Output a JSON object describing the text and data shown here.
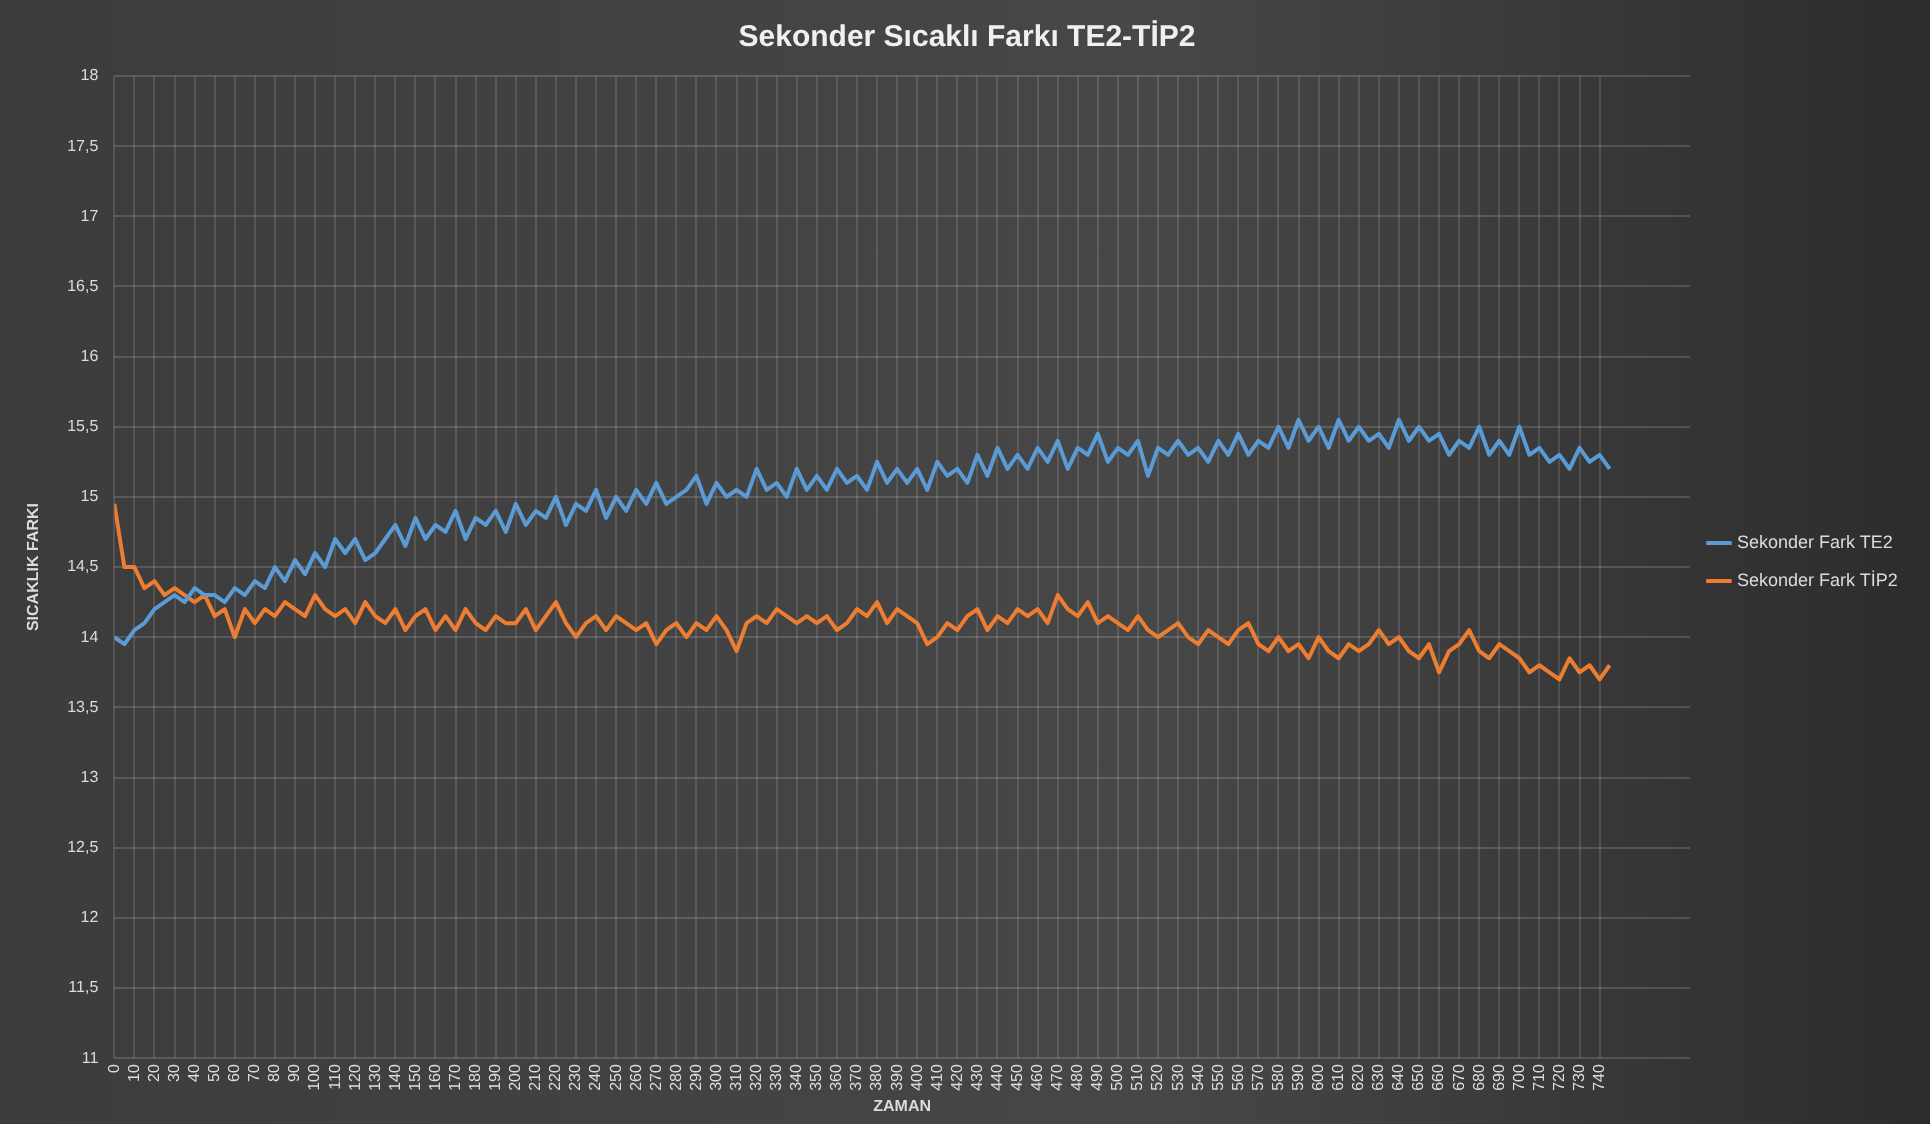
{
  "chart_data": {
    "type": "line",
    "title": "Sekonder Sıcaklı Farkı TE2-TİP2",
    "xlabel": "ZAMAN",
    "ylabel": "SICAKLIK FARKI",
    "x": [
      0,
      5,
      10,
      15,
      20,
      25,
      30,
      35,
      40,
      45,
      50,
      55,
      60,
      65,
      70,
      75,
      80,
      85,
      90,
      95,
      100,
      105,
      110,
      115,
      120,
      125,
      130,
      135,
      140,
      145,
      150,
      155,
      160,
      165,
      170,
      175,
      180,
      185,
      190,
      195,
      200,
      205,
      210,
      215,
      220,
      225,
      230,
      235,
      240,
      245,
      250,
      255,
      260,
      265,
      270,
      275,
      280,
      285,
      290,
      295,
      300,
      305,
      310,
      315,
      320,
      325,
      330,
      335,
      340,
      345,
      350,
      355,
      360,
      365,
      370,
      375,
      380,
      385,
      390,
      395,
      400,
      405,
      410,
      415,
      420,
      425,
      430,
      435,
      440,
      445,
      450,
      455,
      460,
      465,
      470,
      475,
      480,
      485,
      490,
      495,
      500,
      505,
      510,
      515,
      520,
      525,
      530,
      535,
      540,
      545,
      550,
      555,
      560,
      565,
      570,
      575,
      580,
      585,
      590,
      595,
      600,
      605,
      610,
      615,
      620,
      625,
      630,
      635,
      640,
      645,
      650,
      655,
      660,
      665,
      670,
      675,
      680,
      685,
      690,
      695,
      700,
      705,
      710,
      715,
      720,
      725,
      730,
      735,
      740,
      745
    ],
    "series": [
      {
        "name": "Sekonder Fark TE2",
        "color": "#5b9bd5",
        "values": [
          14.0,
          13.95,
          14.05,
          14.1,
          14.2,
          14.25,
          14.3,
          14.25,
          14.35,
          14.3,
          14.3,
          14.25,
          14.35,
          14.3,
          14.4,
          14.35,
          14.5,
          14.4,
          14.55,
          14.45,
          14.6,
          14.5,
          14.7,
          14.6,
          14.7,
          14.55,
          14.6,
          14.7,
          14.8,
          14.65,
          14.85,
          14.7,
          14.8,
          14.75,
          14.9,
          14.7,
          14.85,
          14.8,
          14.9,
          14.75,
          14.95,
          14.8,
          14.9,
          14.85,
          15.0,
          14.8,
          14.95,
          14.9,
          15.05,
          14.85,
          15.0,
          14.9,
          15.05,
          14.95,
          15.1,
          14.95,
          15.0,
          15.05,
          15.15,
          14.95,
          15.1,
          15.0,
          15.05,
          15.0,
          15.2,
          15.05,
          15.1,
          15.0,
          15.2,
          15.05,
          15.15,
          15.05,
          15.2,
          15.1,
          15.15,
          15.05,
          15.25,
          15.1,
          15.2,
          15.1,
          15.2,
          15.05,
          15.25,
          15.15,
          15.2,
          15.1,
          15.3,
          15.15,
          15.35,
          15.2,
          15.3,
          15.2,
          15.35,
          15.25,
          15.4,
          15.2,
          15.35,
          15.3,
          15.45,
          15.25,
          15.35,
          15.3,
          15.4,
          15.15,
          15.35,
          15.3,
          15.4,
          15.3,
          15.35,
          15.25,
          15.4,
          15.3,
          15.45,
          15.3,
          15.4,
          15.35,
          15.5,
          15.35,
          15.55,
          15.4,
          15.5,
          15.35,
          15.55,
          15.4,
          15.5,
          15.4,
          15.45,
          15.35,
          15.55,
          15.4,
          15.5,
          15.4,
          15.45,
          15.3,
          15.4,
          15.35,
          15.5,
          15.3,
          15.4,
          15.3,
          15.5,
          15.3,
          15.35,
          15.25,
          15.3,
          15.2,
          15.35,
          15.25,
          15.3,
          15.2
        ]
      },
      {
        "name": "Sekonder Fark TİP2",
        "color": "#ed7d31",
        "values": [
          14.95,
          14.5,
          14.5,
          14.35,
          14.4,
          14.3,
          14.35,
          14.3,
          14.25,
          14.3,
          14.15,
          14.2,
          14.0,
          14.2,
          14.1,
          14.2,
          14.15,
          14.25,
          14.2,
          14.15,
          14.3,
          14.2,
          14.15,
          14.2,
          14.1,
          14.25,
          14.15,
          14.1,
          14.2,
          14.05,
          14.15,
          14.2,
          14.05,
          14.15,
          14.05,
          14.2,
          14.1,
          14.05,
          14.15,
          14.1,
          14.1,
          14.2,
          14.05,
          14.15,
          14.25,
          14.1,
          14.0,
          14.1,
          14.15,
          14.05,
          14.15,
          14.1,
          14.05,
          14.1,
          13.95,
          14.05,
          14.1,
          14.0,
          14.1,
          14.05,
          14.15,
          14.05,
          13.9,
          14.1,
          14.15,
          14.1,
          14.2,
          14.15,
          14.1,
          14.15,
          14.1,
          14.15,
          14.05,
          14.1,
          14.2,
          14.15,
          14.25,
          14.1,
          14.2,
          14.15,
          14.1,
          13.95,
          14.0,
          14.1,
          14.05,
          14.15,
          14.2,
          14.05,
          14.15,
          14.1,
          14.2,
          14.15,
          14.2,
          14.1,
          14.3,
          14.2,
          14.15,
          14.25,
          14.1,
          14.15,
          14.1,
          14.05,
          14.15,
          14.05,
          14.0,
          14.05,
          14.1,
          14.0,
          13.95,
          14.05,
          14.0,
          13.95,
          14.05,
          14.1,
          13.95,
          13.9,
          14.0,
          13.9,
          13.95,
          13.85,
          14.0,
          13.9,
          13.85,
          13.95,
          13.9,
          13.95,
          14.05,
          13.95,
          14.0,
          13.9,
          13.85,
          13.95,
          13.75,
          13.9,
          13.95,
          14.05,
          13.9,
          13.85,
          13.95,
          13.9,
          13.85,
          13.75,
          13.8,
          13.75,
          13.7,
          13.85,
          13.75,
          13.8,
          13.7,
          13.8
        ]
      }
    ],
    "xlim": [
      0,
      785
    ],
    "xticks": [
      0,
      10,
      20,
      30,
      40,
      50,
      60,
      70,
      80,
      90,
      100,
      110,
      120,
      130,
      140,
      150,
      160,
      170,
      180,
      190,
      200,
      210,
      220,
      230,
      240,
      250,
      260,
      270,
      280,
      290,
      300,
      310,
      320,
      330,
      340,
      350,
      360,
      370,
      380,
      390,
      400,
      410,
      420,
      430,
      440,
      450,
      460,
      470,
      480,
      490,
      500,
      510,
      520,
      530,
      540,
      550,
      560,
      570,
      580,
      590,
      600,
      610,
      620,
      630,
      640,
      650,
      660,
      670,
      680,
      690,
      700,
      710,
      720,
      730,
      740
    ],
    "ylim": [
      11,
      18
    ],
    "yticks": [
      11,
      {
        "value": 11.5,
        "label": "11,5"
      },
      12,
      {
        "value": 12.5,
        "label": "12,5"
      },
      13,
      {
        "value": 13.5,
        "label": "13,5"
      },
      14,
      {
        "value": 14.5,
        "label": "14,5"
      },
      15,
      {
        "value": 15.5,
        "label": "15,5"
      },
      16,
      {
        "value": 16.5,
        "label": "16,5"
      },
      17,
      {
        "value": 17.5,
        "label": "17,5"
      },
      18
    ],
    "grid": true,
    "legend": "right",
    "marker": "none",
    "line_style": "solid"
  }
}
